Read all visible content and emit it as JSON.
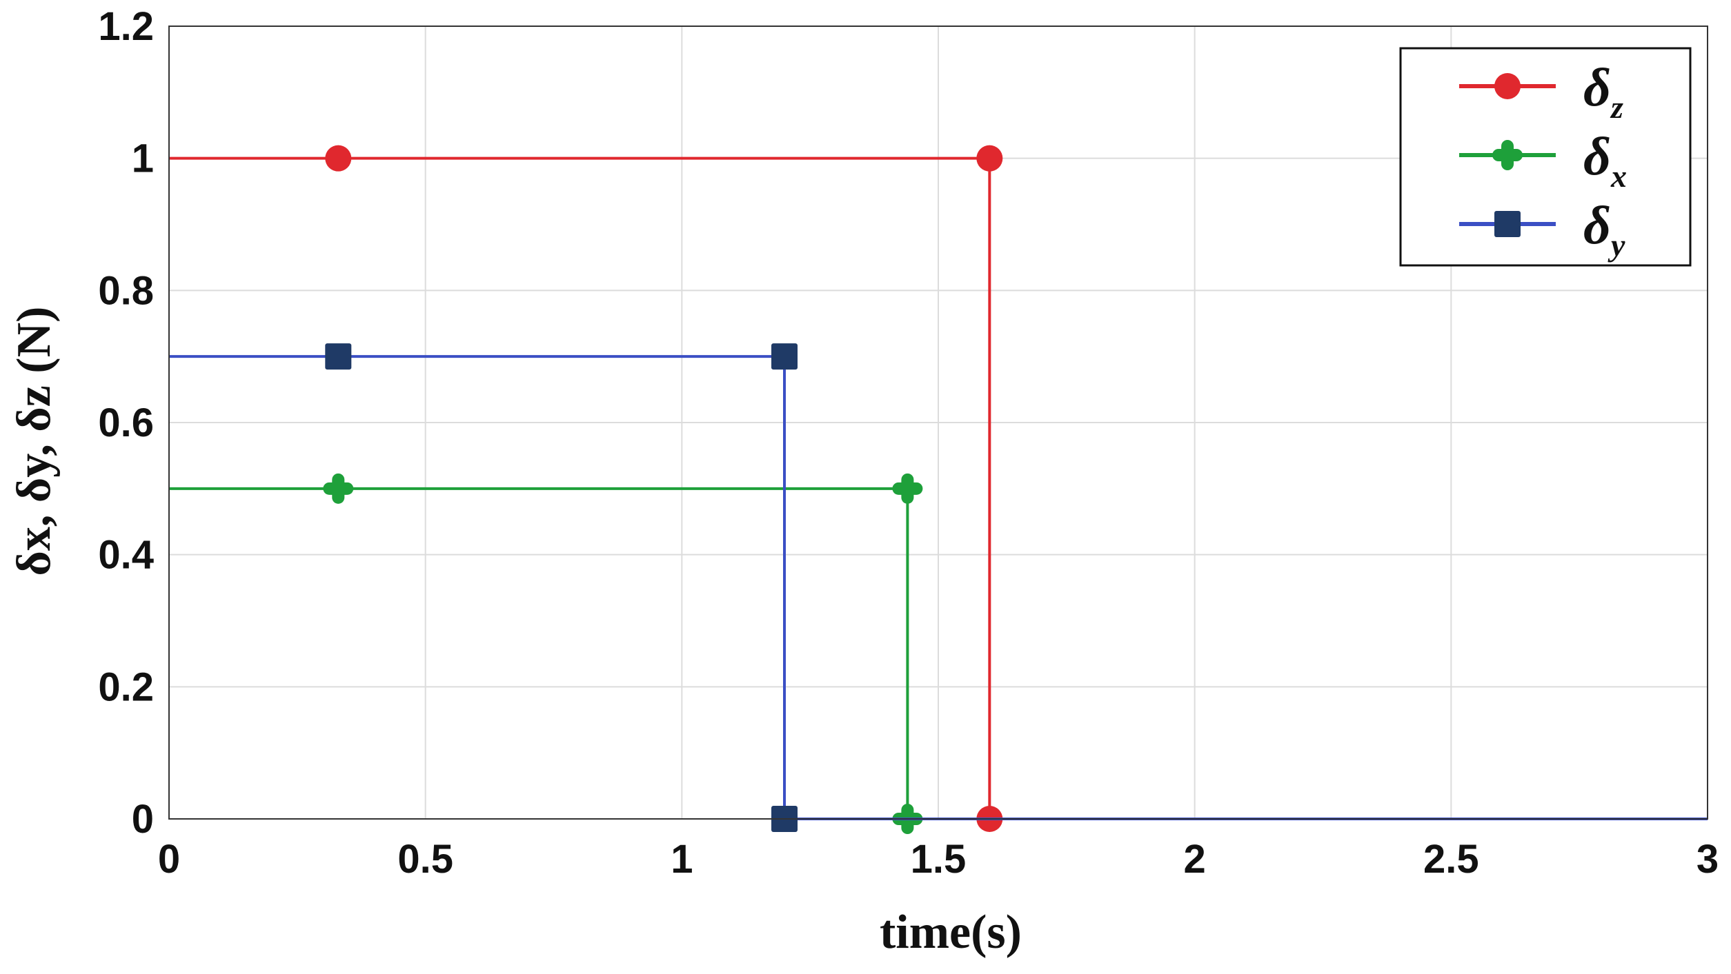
{
  "chart_data": {
    "type": "line",
    "title": "",
    "xlabel": "time(s)",
    "ylabel": "δx, δy, δz (N)",
    "xlim": [
      0,
      3
    ],
    "ylim": [
      0,
      1.2
    ],
    "xticks": [
      "0",
      "0.5",
      "1",
      "1.5",
      "2",
      "2.5",
      "3"
    ],
    "yticks": [
      "0",
      "0.2",
      "0.4",
      "0.6",
      "0.8",
      "1",
      "1.2"
    ],
    "grid": true,
    "legend_position": "top-right",
    "series": [
      {
        "name": "δz",
        "color": "#e0282e",
        "marker": "circle",
        "x": [
          0,
          0.33,
          1.6,
          1.6,
          3
        ],
        "y": [
          1,
          1,
          1,
          0,
          0
        ],
        "marker_points": [
          [
            0.33,
            1
          ],
          [
            1.6,
            1
          ],
          [
            1.6,
            0
          ]
        ]
      },
      {
        "name": "δx",
        "color": "#1ea03a",
        "marker": "cross",
        "x": [
          0,
          0.33,
          1.44,
          1.44,
          3
        ],
        "y": [
          0.5,
          0.5,
          0.5,
          0,
          0
        ],
        "marker_points": [
          [
            0.33,
            0.5
          ],
          [
            1.44,
            0.5
          ],
          [
            1.44,
            0
          ]
        ]
      },
      {
        "name": "δy",
        "color": "#3b4fc4",
        "marker": "square",
        "marker_color": "#1f3a66",
        "x": [
          0,
          0.33,
          1.2,
          1.2,
          3
        ],
        "y": [
          0.7,
          0.7,
          0.7,
          0,
          0
        ],
        "marker_points": [
          [
            0.33,
            0.7
          ],
          [
            1.2,
            0.7
          ],
          [
            1.2,
            0
          ]
        ]
      }
    ],
    "legend": [
      {
        "symbol": "δ",
        "sub": "z",
        "series": 0
      },
      {
        "symbol": "δ",
        "sub": "x",
        "series": 1
      },
      {
        "symbol": "δ",
        "sub": "y",
        "series": 2
      }
    ]
  }
}
